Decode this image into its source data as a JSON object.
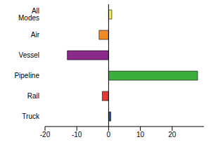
{
  "chart_data": {
    "type": "bar",
    "orientation": "horizontal",
    "categories": [
      "All Modes",
      "Air",
      "Vessel",
      "Pipeline",
      "Rail",
      "Truck"
    ],
    "values": [
      1,
      -3,
      -13,
      28,
      -2,
      0.7
    ],
    "colors": [
      "#f2ee4a",
      "#f08a24",
      "#8b2a8b",
      "#3cae3c",
      "#e23a3a",
      "#2e4f9e"
    ],
    "xlim": [
      -20,
      30
    ],
    "xticks": [
      -20,
      -10,
      0,
      10,
      20
    ],
    "grid": false
  }
}
